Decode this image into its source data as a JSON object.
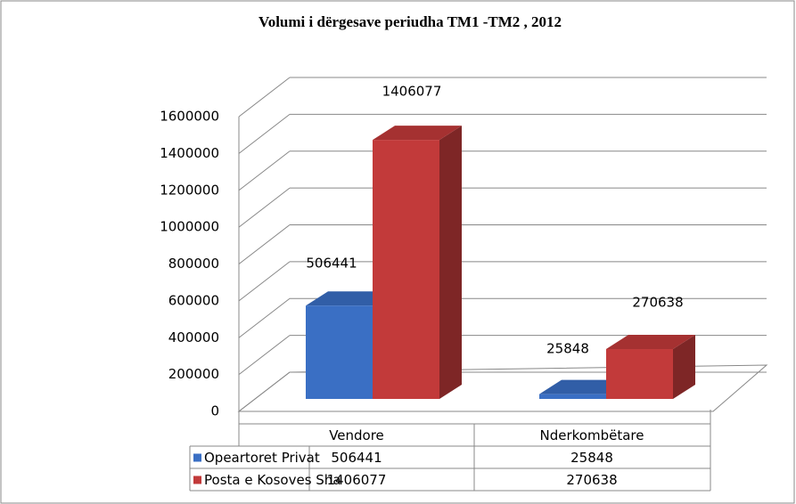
{
  "chart_data": {
    "type": "bar3d",
    "title": "Volumi  i dërgesave  periudha TM1 -TM2 , 2012",
    "categories": [
      "Vendore",
      "Nderkombëtare"
    ],
    "series": [
      {
        "name": "Opeartoret Privat",
        "color": "#3a6fc4",
        "values": [
          506441,
          25848
        ]
      },
      {
        "name": "Posta e Kosoves Sha",
        "color": "#c23a3a",
        "values": [
          1406077,
          270638
        ]
      }
    ],
    "ylim": [
      0,
      1600000
    ],
    "yticks": [
      0,
      200000,
      400000,
      600000,
      800000,
      1000000,
      1200000,
      1400000,
      1600000
    ],
    "grid": true
  }
}
